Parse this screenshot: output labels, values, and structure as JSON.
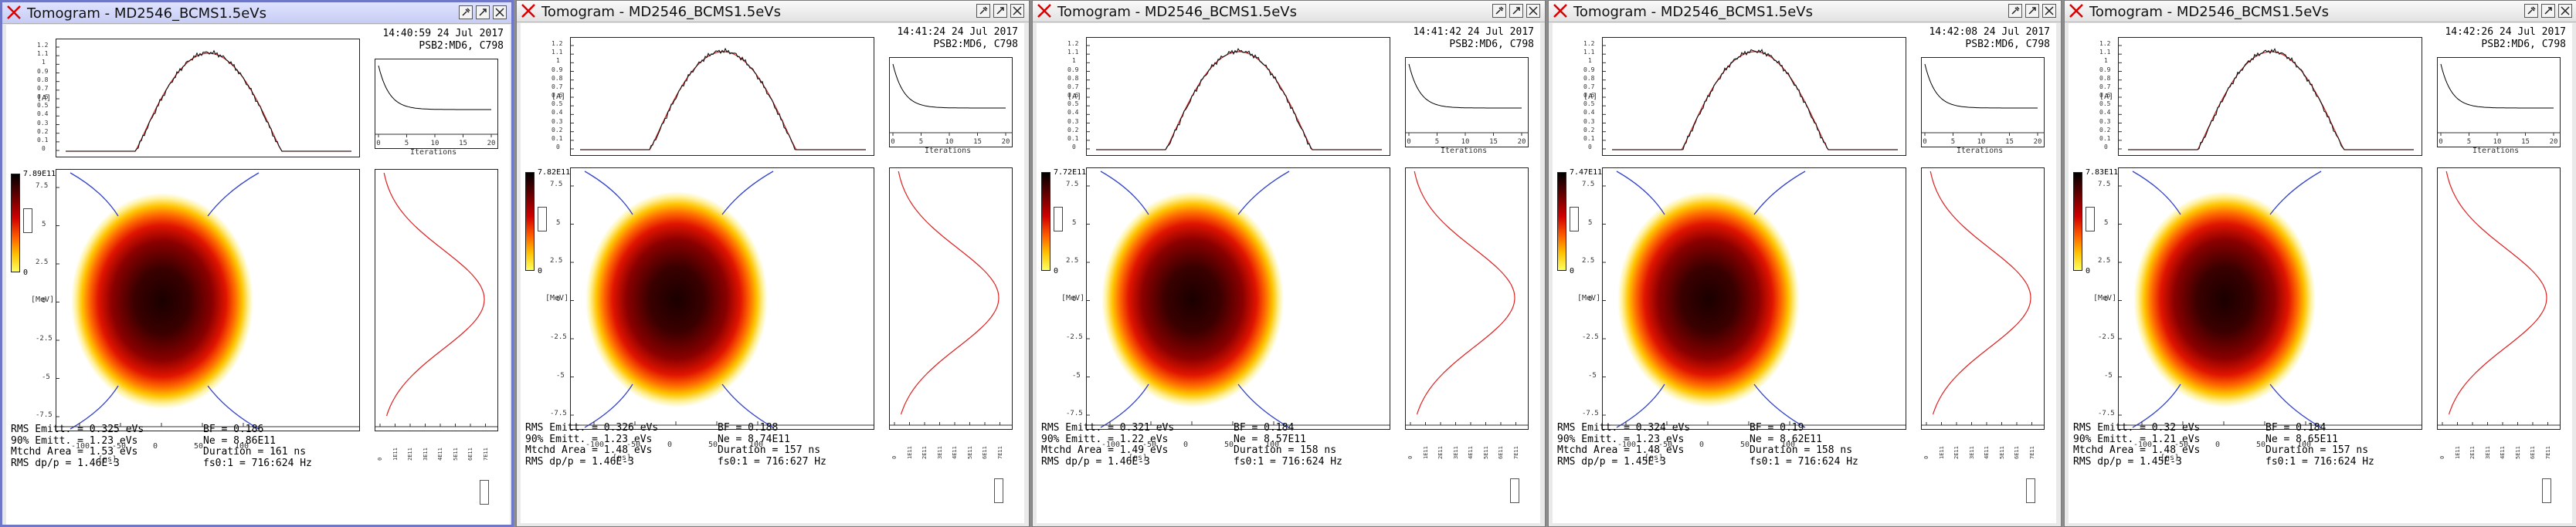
{
  "colors": {
    "profile_measured": "#111111",
    "profile_fit": "#cc2222",
    "separatrix": "#3344cc",
    "projection": "#dd2222",
    "active_border": "#6f78c8"
  },
  "icons": {
    "close": "x-icon",
    "pin": "pin-icon",
    "maximize": "restore-icon",
    "window_close": "close-box-icon"
  },
  "axes": {
    "profile_y_ticks": [
      "1.2",
      "1.1",
      "1",
      "0.9",
      "0.8",
      "0.7",
      "0.6",
      "0.5",
      "0.4",
      "0.3",
      "0.2",
      "0.1",
      "0"
    ],
    "profile_y_unit": "[A]",
    "phase_x_ticks": [
      "-100",
      "-50",
      "0",
      "50",
      "100"
    ],
    "phase_x_unit": "[ns]",
    "phase_y_ticks": [
      "7.5",
      "5",
      "2.5",
      "0",
      "-2.5",
      "-5",
      "-7.5"
    ],
    "phase_y_unit": "[MeV]",
    "conv_x_ticks": [
      "0",
      "5",
      "10",
      "15",
      "20"
    ],
    "conv_x_label": "Iterations",
    "proj_x_ticks": [
      "0",
      "1E11",
      "2E11",
      "3E11",
      "4E11",
      "5E11",
      "6E11",
      "7E11"
    ],
    "colorbar_zero": "0"
  },
  "windows": [
    {
      "title": "Tomogram - MD2546_BCMS1.5eVs",
      "time": "14:40:59 24 Jul 2017",
      "cycle": "PSB2:MD6, C798",
      "cbar_max": "7.89E11",
      "rms_emitt": "RMS Emitt. = 0.325 eVs",
      "emitt90": "90% Emitt. = 1.23 eVs",
      "mtchd": "Mtchd Area = 1.53 eVs",
      "dpp": "RMS dp/p = 1.46E-3",
      "bf": "BF = 0.186",
      "ne": "Ne = 8.86E11",
      "duration": "Duration = 161 ns",
      "fs": "fs0:1 = 716:624 Hz"
    },
    {
      "title": "Tomogram - MD2546_BCMS1.5eVs",
      "time": "14:41:24 24 Jul 2017",
      "cycle": "PSB2:MD6, C798",
      "cbar_max": "7.82E11",
      "rms_emitt": "RMS Emitt. = 0.326 eVs",
      "emitt90": "90% Emitt. = 1.23 eVs",
      "mtchd": "Mtchd Area = 1.48 eVs",
      "dpp": "RMS dp/p = 1.46E-3",
      "bf": "BF = 0.188",
      "ne": "Ne = 8.74E11",
      "duration": "Duration = 157 ns",
      "fs": "fs0:1 = 716:627 Hz"
    },
    {
      "title": "Tomogram - MD2546_BCMS1.5eVs",
      "time": "14:41:42 24 Jul 2017",
      "cycle": "PSB2:MD6, C798",
      "cbar_max": "7.72E11",
      "rms_emitt": "RMS Emitt. = 0.321 eVs",
      "emitt90": "90% Emitt. = 1.22 eVs",
      "mtchd": "Mtchd Area = 1.49 eVs",
      "dpp": "RMS dp/p = 1.46E-3",
      "bf": "BF = 0.184",
      "ne": "Ne = 8.57E11",
      "duration": "Duration = 158 ns",
      "fs": "fs0:1 = 716:624 Hz"
    },
    {
      "title": "Tomogram - MD2546_BCMS1.5eVs",
      "time": "14:42:08 24 Jul 2017",
      "cycle": "PSB2:MD6, C798",
      "cbar_max": "7.47E11",
      "rms_emitt": "RMS Emitt. = 0.324 eVs",
      "emitt90": "90% Emitt. = 1.23 eVs",
      "mtchd": "Mtchd Area = 1.48 eVs",
      "dpp": "RMS dp/p = 1.45E-3",
      "bf": "BF = 0.19",
      "ne": "Ne = 8.62E11",
      "duration": "Duration = 158 ns",
      "fs": "fs0:1 = 716:624 Hz"
    },
    {
      "title": "Tomogram - MD2546_BCMS1.5eVs",
      "time": "14:42:26 24 Jul 2017",
      "cycle": "PSB2:MD6, C798",
      "cbar_max": "7.83E11",
      "rms_emitt": "RMS Emitt. = 0.32 eVs",
      "emitt90": "90% Emitt. = 1.21 eVs",
      "mtchd": "Mtchd Area = 1.48 eVs",
      "dpp": "RMS dp/p = 1.45E-3",
      "bf": "BF = 0.184",
      "ne": "Ne = 8.65E11",
      "duration": "Duration = 157 ns",
      "fs": "fs0:1 = 716:624 Hz"
    }
  ]
}
